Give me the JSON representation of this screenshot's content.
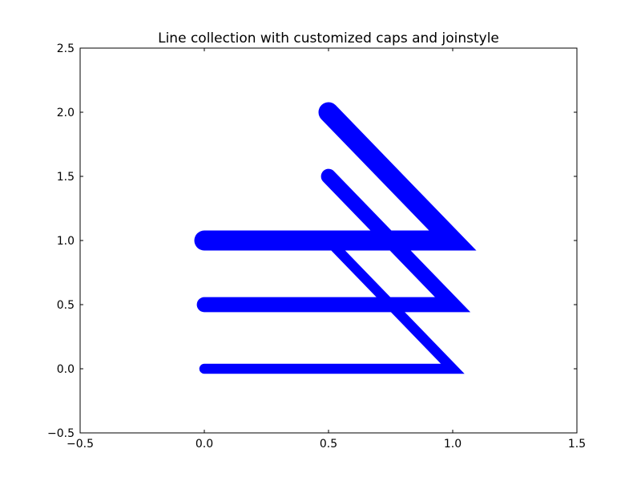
{
  "chart_data": {
    "type": "line",
    "title": "Line collection with customized caps and joinstyle",
    "xlabel": "",
    "ylabel": "",
    "xlim": [
      -0.5,
      1.5
    ],
    "ylim": [
      -0.5,
      2.5
    ],
    "xticks": [
      -0.5,
      0.0,
      0.5,
      1.0,
      1.5
    ],
    "yticks": [
      -0.5,
      0.0,
      0.5,
      1.0,
      1.5,
      2.0,
      2.5
    ],
    "xtick_labels": [
      "−0.5",
      "0.0",
      "0.5",
      "1.0",
      "1.5"
    ],
    "ytick_labels": [
      "−0.5",
      "0.0",
      "0.5",
      "1.0",
      "1.5",
      "2.0",
      "2.5"
    ],
    "grid": false,
    "line_color": "#0000ff",
    "series": [
      {
        "x": [
          0.0,
          1.0,
          0.5
        ],
        "y": [
          0.0,
          0.0,
          1.0
        ],
        "linewidth": 10,
        "capstyle": "round",
        "joinstyle": "miter"
      },
      {
        "x": [
          0.0,
          1.0,
          0.5
        ],
        "y": [
          0.5,
          0.5,
          1.5
        ],
        "linewidth": 15,
        "capstyle": "round",
        "joinstyle": "miter"
      },
      {
        "x": [
          0.0,
          1.0,
          0.5
        ],
        "y": [
          1.0,
          1.0,
          2.0
        ],
        "linewidth": 20,
        "capstyle": "round",
        "joinstyle": "miter"
      }
    ]
  }
}
